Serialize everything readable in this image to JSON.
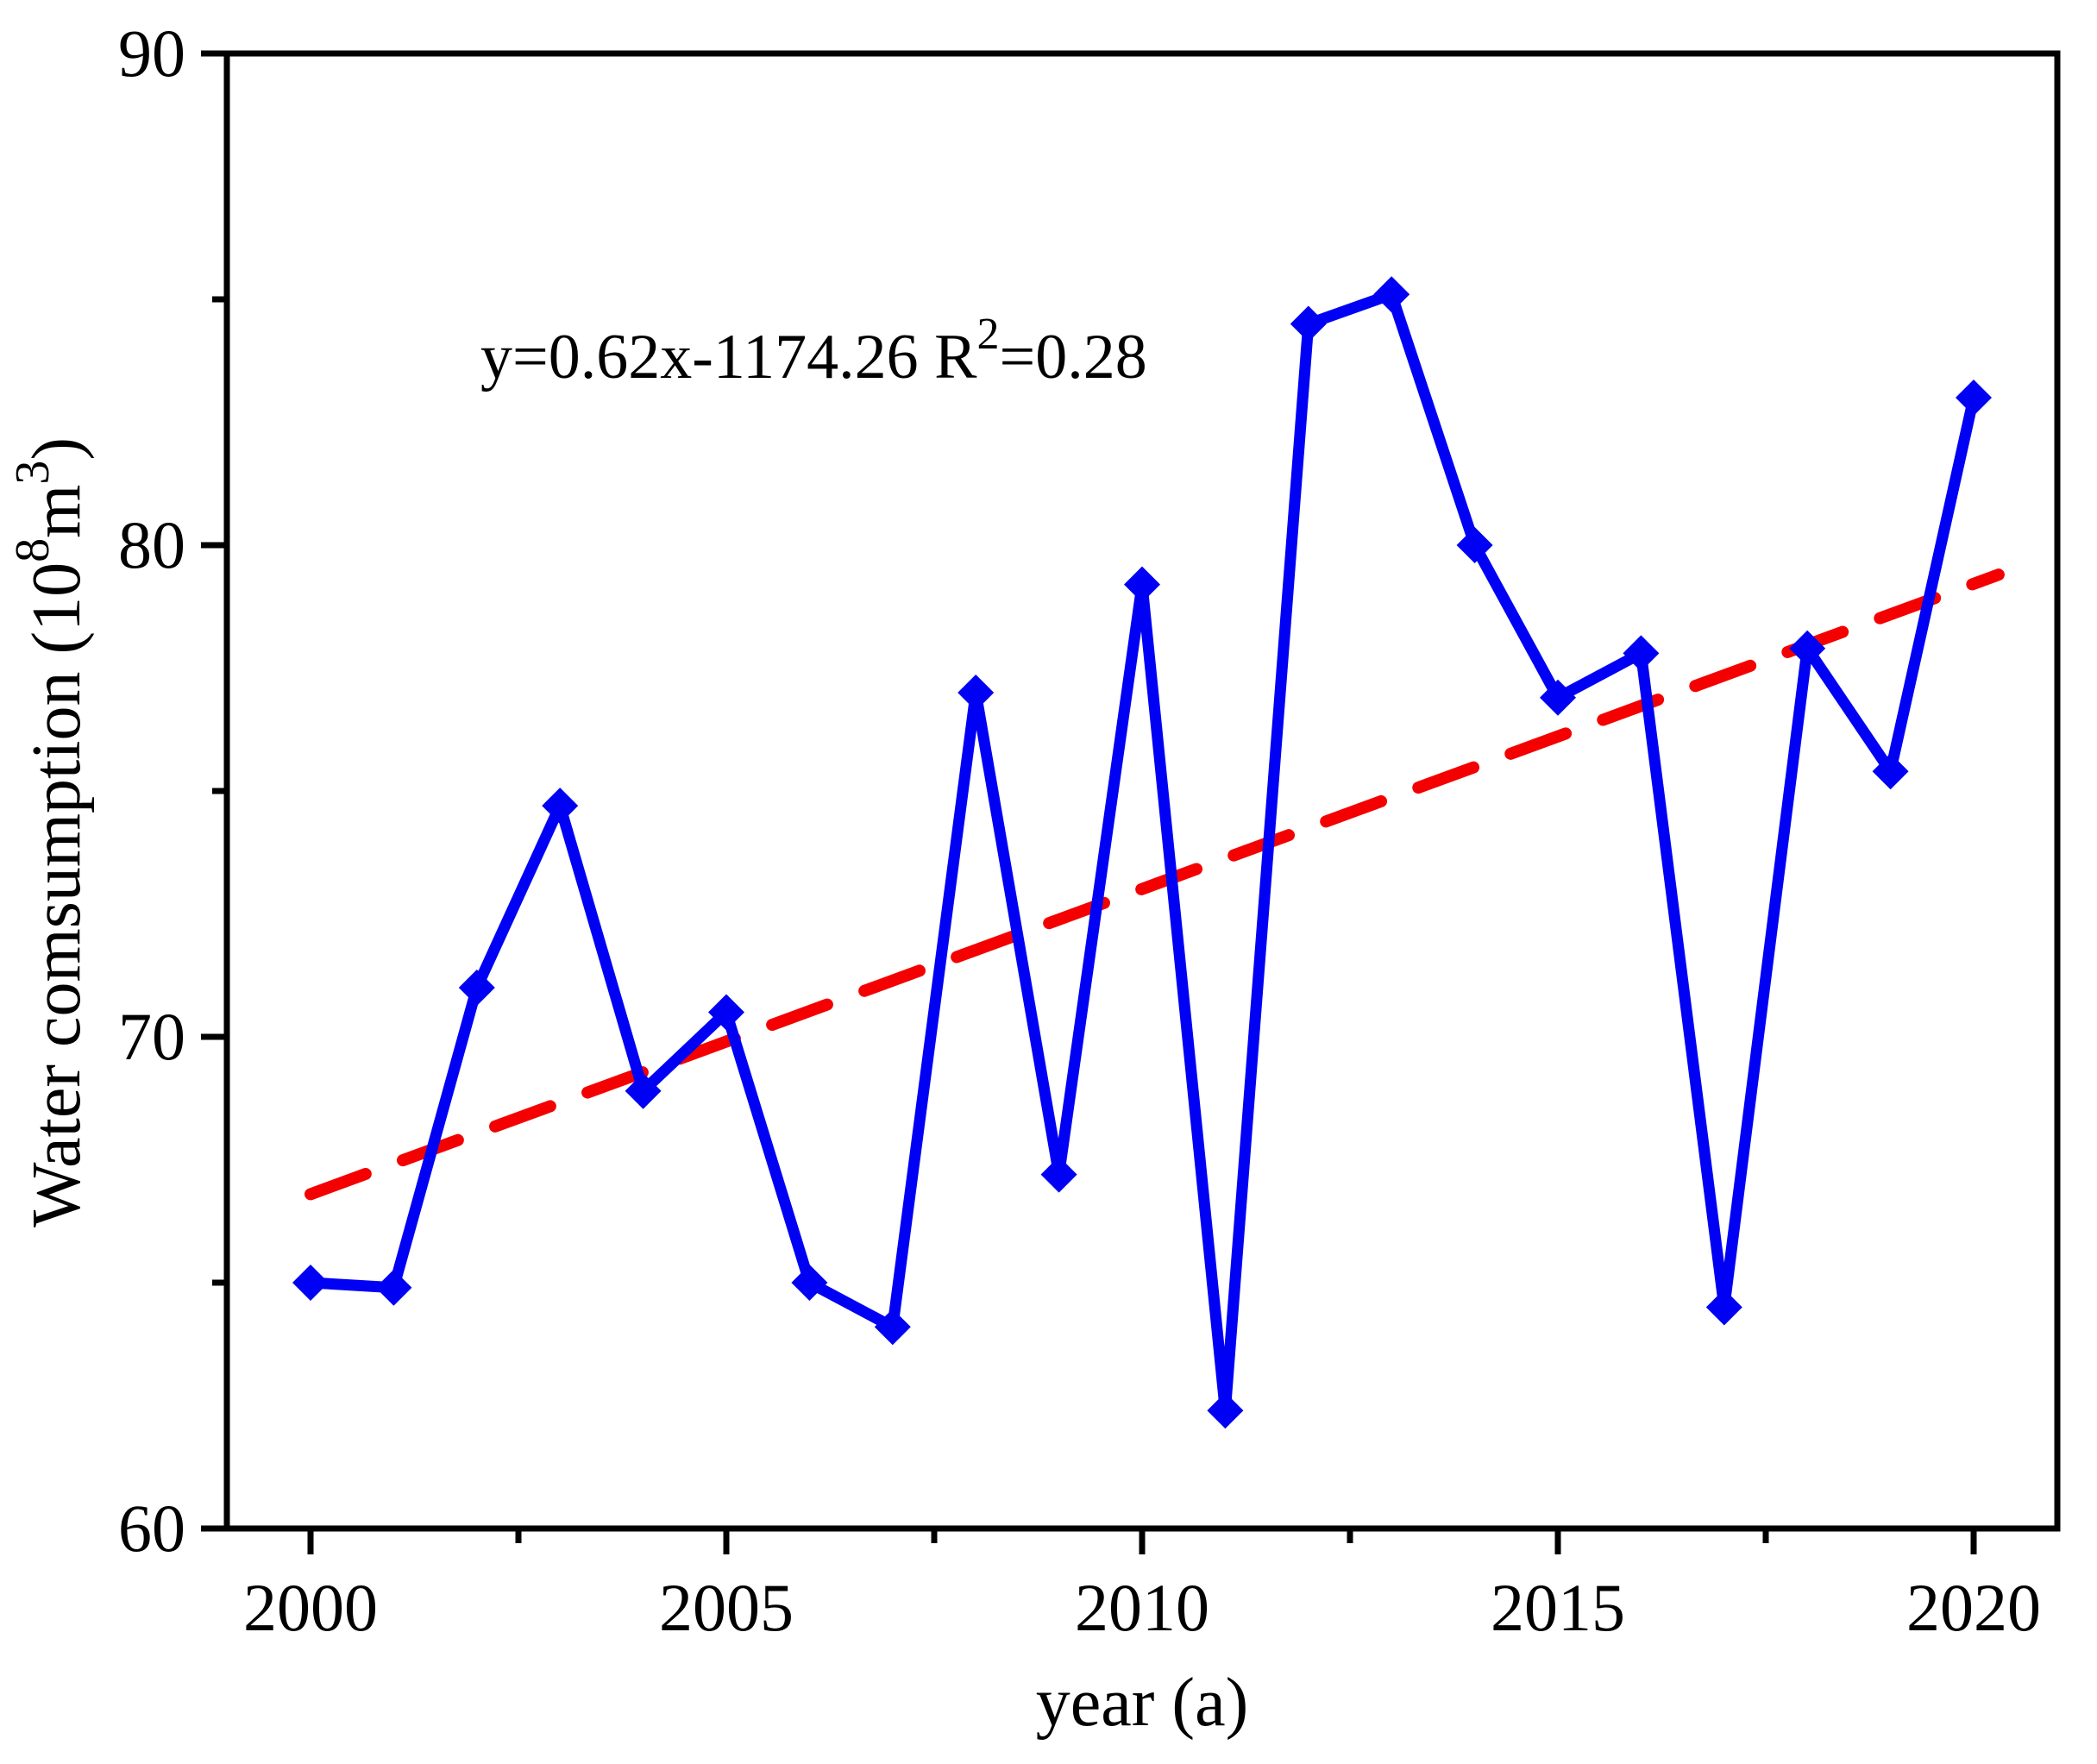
{
  "chart_data": {
    "type": "line",
    "title": "",
    "xlabel": "year (a)",
    "ylabel": "Water comsumption (10⁸m³)",
    "ylabel_parts": [
      {
        "text": "Water comsumption (10",
        "sup": false
      },
      {
        "text": "8",
        "sup": true
      },
      {
        "text": "m",
        "sup": false
      },
      {
        "text": "3",
        "sup": true
      },
      {
        "text": ")",
        "sup": false
      }
    ],
    "x": [
      2000,
      2001,
      2002,
      2003,
      2004,
      2005,
      2006,
      2007,
      2008,
      2009,
      2010,
      2011,
      2012,
      2013,
      2014,
      2015,
      2016,
      2017,
      2018,
      2019,
      2020
    ],
    "values": [
      65.0,
      64.9,
      71.0,
      74.7,
      68.9,
      70.5,
      65.0,
      64.1,
      77.0,
      67.2,
      79.2,
      62.4,
      84.5,
      85.1,
      80.0,
      76.9,
      77.8,
      64.5,
      77.9,
      75.4,
      83.0
    ],
    "series_name": "Water consumption",
    "marker": "diamond",
    "xlim": [
      1999,
      2021
    ],
    "ylim": [
      60,
      90
    ],
    "xticks_major": [
      2000,
      2005,
      2010,
      2015,
      2020
    ],
    "xtick_labels": [
      "2000",
      "2005",
      "2010",
      "2015",
      "2020"
    ],
    "xticks_minor": [
      2002.5,
      2007.5,
      2012.5,
      2017.5
    ],
    "yticks_major": [
      90,
      80,
      70,
      60
    ],
    "ytick_labels": [
      "90",
      "80",
      "70",
      "60"
    ],
    "yticks_minor": [
      85,
      75,
      65
    ],
    "grid": false,
    "legend": "none",
    "annotation": {
      "equation": "y=0.62x-1174.26",
      "r_label": "R",
      "r_exponent": "2",
      "r_value": "=0.28",
      "full_text": "y=0.62x-1174.26 R²=0.28"
    },
    "trendline": {
      "style": "dashed",
      "start_year": 2000,
      "start_value": 66.8,
      "end_year": 2020.3,
      "end_value": 79.4
    },
    "colors": {
      "series": "#0000f5",
      "trend": "#f40000",
      "axis": "#000000",
      "background": "#ffffff"
    }
  }
}
